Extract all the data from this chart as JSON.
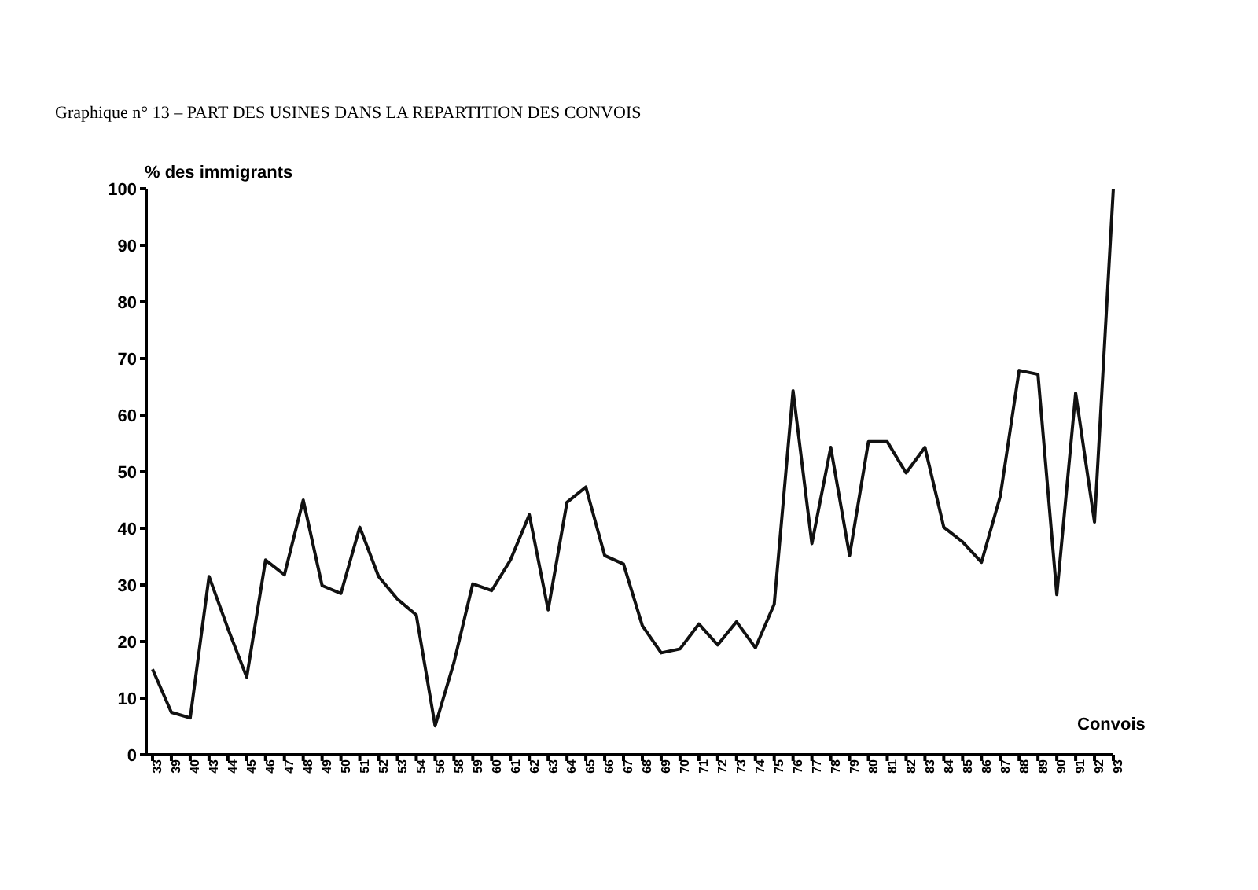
{
  "chart_data": {
    "type": "line",
    "title": "Graphique n° 13 – PART DES USINES DANS LA REPARTITION DES CONVOIS",
    "ylabel": "% des immigrants",
    "xlabel": "Convois",
    "categories": [
      "33",
      "39",
      "40",
      "43",
      "44",
      "45",
      "46",
      "47",
      "48",
      "49",
      "50",
      "51",
      "52",
      "53",
      "54",
      "56",
      "58",
      "59",
      "60",
      "61",
      "62",
      "63",
      "64",
      "65",
      "66",
      "67",
      "68",
      "69",
      "70",
      "71",
      "72",
      "73",
      "74",
      "75",
      "76",
      "77",
      "78",
      "79",
      "80",
      "81",
      "82",
      "83",
      "84",
      "85",
      "86",
      "87",
      "88",
      "89",
      "90",
      "91",
      "92",
      "93"
    ],
    "series": [
      {
        "color": "#111111",
        "values": [
          15.1,
          7.5,
          6.5,
          31.5,
          22.3,
          13.7,
          34.4,
          31.8,
          45,
          29.9,
          28.5,
          40.2,
          31.5,
          27.5,
          24.7,
          5.1,
          16.3,
          30.2,
          29,
          34.4,
          42.4,
          25.6,
          44.6,
          47.3,
          35.2,
          33.7,
          22.8,
          18,
          18.7,
          23.1,
          19.4,
          23.5,
          18.9,
          26.6,
          64.3,
          37.3,
          54.3,
          35.2,
          55.3,
          55.3,
          49.8,
          54.3,
          40.2,
          37.6,
          34,
          45.7,
          67.9,
          67.2,
          28.3,
          63.9,
          41.1,
          100
        ]
      }
    ],
    "ylim": [
      0,
      100
    ],
    "yticks": [
      0,
      10,
      20,
      30,
      40,
      50,
      60,
      70,
      80,
      90,
      100
    ],
    "grid": false,
    "legend": false,
    "marker": "none",
    "line_style": "solid"
  }
}
